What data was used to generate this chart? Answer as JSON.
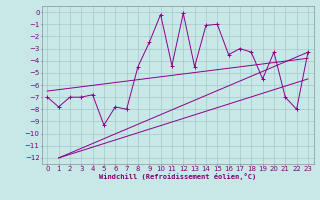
{
  "xlabel": "Windchill (Refroidissement éolien,°C)",
  "background_color": "#c8e8e8",
  "grid_color": "#a0bfbf",
  "line_color": "#8b008b",
  "xlim": [
    -0.5,
    23.5
  ],
  "ylim": [
    -12.5,
    0.5
  ],
  "xticks": [
    0,
    1,
    2,
    3,
    4,
    5,
    6,
    7,
    8,
    9,
    10,
    11,
    12,
    13,
    14,
    15,
    16,
    17,
    18,
    19,
    20,
    21,
    22,
    23
  ],
  "yticks": [
    0,
    -1,
    -2,
    -3,
    -4,
    -5,
    -6,
    -7,
    -8,
    -9,
    -10,
    -11,
    -12
  ],
  "main_x": [
    0,
    1,
    2,
    3,
    4,
    5,
    6,
    7,
    8,
    9,
    10,
    11,
    12,
    13,
    14,
    15,
    16,
    17,
    18,
    19,
    20,
    21,
    22,
    23
  ],
  "main_y": [
    -7.0,
    -7.8,
    -7.0,
    -7.0,
    -6.8,
    -9.3,
    -7.8,
    -8.0,
    -4.5,
    -2.5,
    -0.2,
    -4.4,
    -0.1,
    -4.5,
    -1.1,
    -1.0,
    -3.5,
    -3.0,
    -3.3,
    -5.5,
    -3.3,
    -7.0,
    -8.0,
    -3.3
  ],
  "upper_line_x": [
    1,
    23
  ],
  "upper_line_y": [
    -12.0,
    -3.3
  ],
  "lower_line_x": [
    1,
    23
  ],
  "lower_line_y": [
    -12.0,
    -5.5
  ],
  "reg_line_x": [
    0,
    23
  ],
  "reg_line_y": [
    -6.5,
    -3.8
  ],
  "xlabel_fontsize": 5,
  "tick_fontsize": 5
}
